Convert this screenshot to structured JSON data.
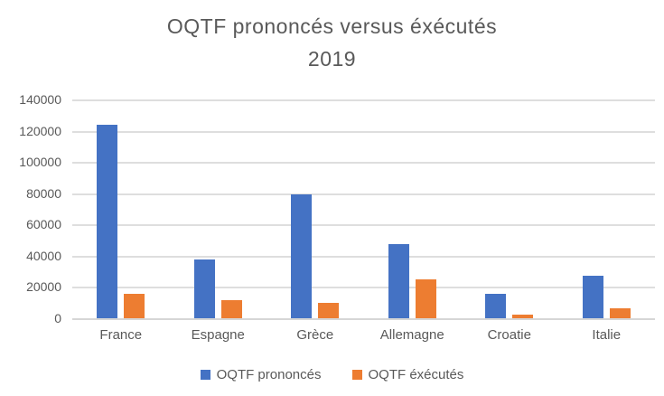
{
  "chart_data": {
    "type": "bar",
    "title": "OQTF prononcés versus éxécutés",
    "subtitle": "2019",
    "categories": [
      "France",
      "Espagne",
      "Grèce",
      "Allemagne",
      "Croatie",
      "Italie"
    ],
    "series": [
      {
        "name": "OQTF prononcés",
        "color": "#4472C4",
        "values": [
          124000,
          37500,
          79000,
          47500,
          15500,
          27000
        ]
      },
      {
        "name": "OQTF éxécutés",
        "color": "#ED7D31",
        "values": [
          15600,
          11500,
          9700,
          25000,
          2500,
          6500
        ]
      }
    ],
    "ylim": [
      0,
      140000
    ],
    "ytick_step": 20000,
    "ytick_labels": [
      "0",
      "20000",
      "40000",
      "60000",
      "80000",
      "100000",
      "120000",
      "140000"
    ],
    "grid": true,
    "legend_position": "bottom",
    "colors": {
      "text": "#595959",
      "gridline": "#DEDEDE",
      "background": "#FFFFFF"
    }
  }
}
